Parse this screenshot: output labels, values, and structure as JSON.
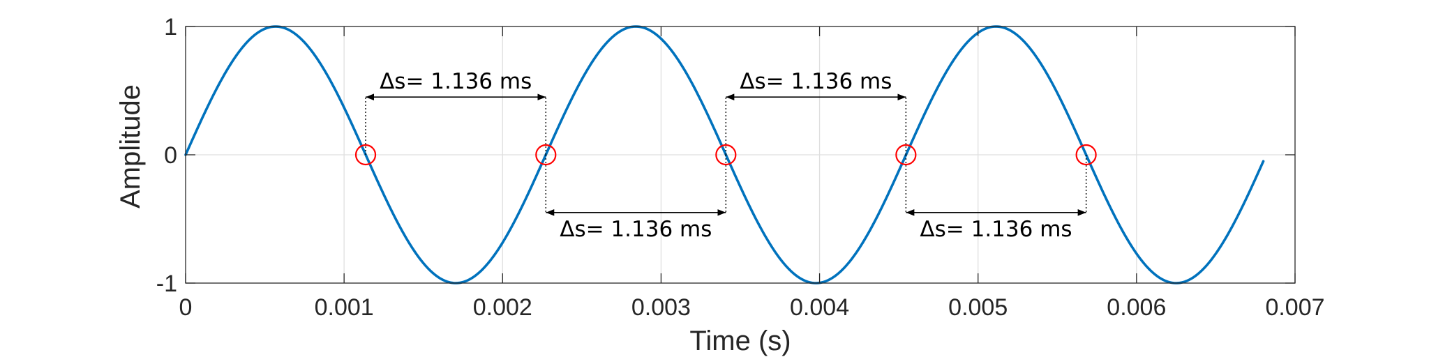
{
  "chart_data": {
    "type": "line",
    "xlabel": "Time (s)",
    "ylabel": "Amplitude",
    "xlim": [
      0,
      0.007
    ],
    "ylim": [
      -1,
      1
    ],
    "grid": true,
    "x_ticks": [
      0,
      0.001,
      0.002,
      0.003,
      0.004,
      0.005,
      0.006,
      0.007
    ],
    "x_tick_labels": [
      "0",
      "0.001",
      "0.002",
      "0.003",
      "0.004",
      "0.005",
      "0.006",
      "0.007"
    ],
    "y_ticks": [
      -1,
      0,
      1
    ],
    "y_tick_labels": [
      "-1",
      "0",
      "1"
    ],
    "series": [
      {
        "type": "sine",
        "amplitude": 1,
        "frequency_hz": 440,
        "phase": 0,
        "x_start": 0,
        "x_end": 0.0068,
        "color": "#0072BD"
      }
    ],
    "markers": {
      "x": [
        0.001136,
        0.002273,
        0.003409,
        0.004545,
        0.005682
      ],
      "y": [
        0,
        0,
        0,
        0,
        0
      ],
      "shape": "circle",
      "color": "#FF0000"
    },
    "annotations": [
      {
        "text": "Δs= 1.136 ms",
        "x_from": 0.001136,
        "x_to": 0.002273,
        "y": 0.45,
        "position": "above"
      },
      {
        "text": "Δs= 1.136 ms",
        "x_from": 0.003409,
        "x_to": 0.004545,
        "y": 0.45,
        "position": "above"
      },
      {
        "text": "Δs= 1.136 ms",
        "x_from": 0.002273,
        "x_to": 0.003409,
        "y": -0.45,
        "position": "below"
      },
      {
        "text": "Δs= 1.136 ms",
        "x_from": 0.004545,
        "x_to": 0.005682,
        "y": -0.45,
        "position": "below"
      }
    ]
  }
}
